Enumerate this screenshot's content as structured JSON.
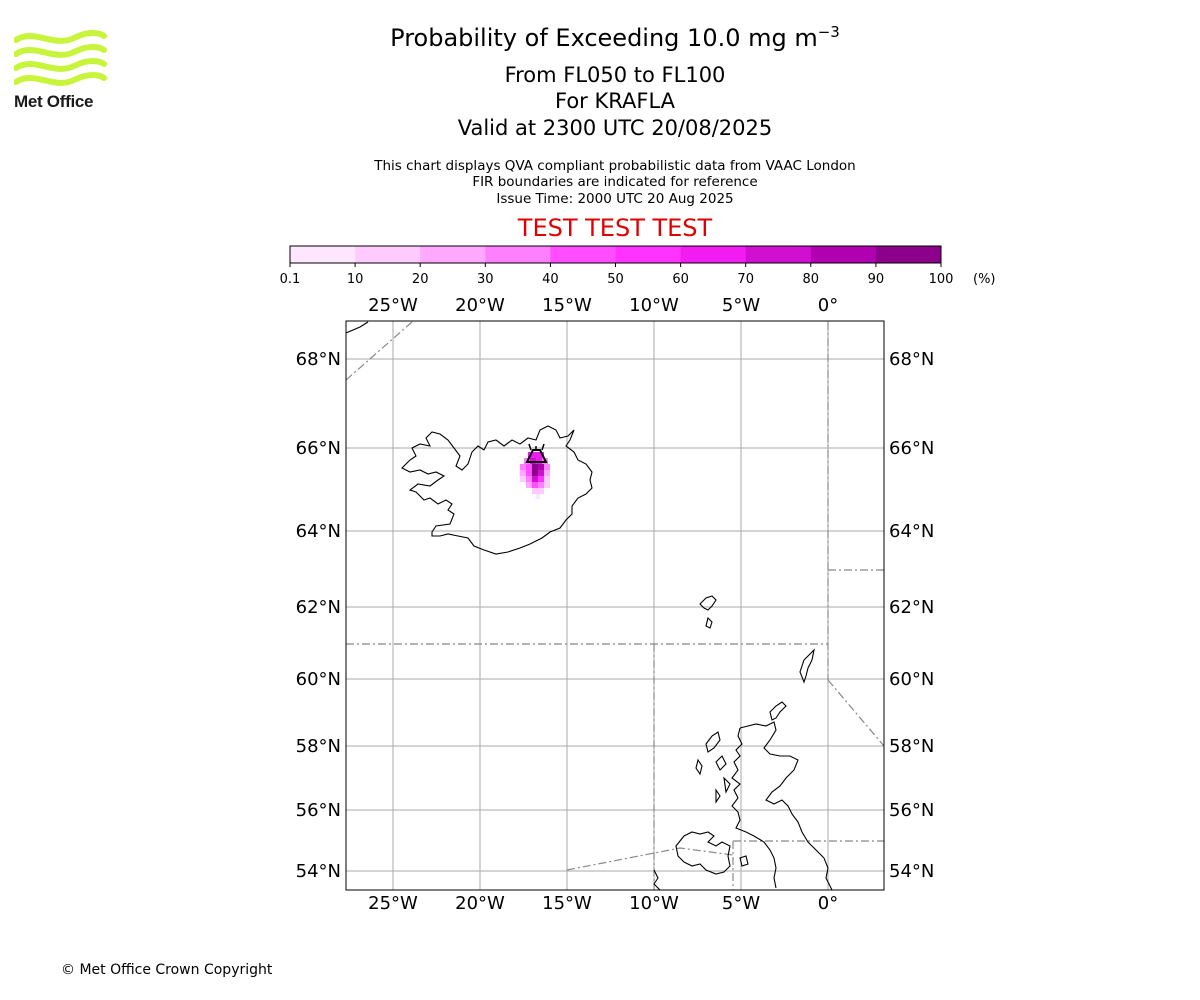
{
  "header": {
    "title": "Probability of Exceeding 10.0 mg m",
    "title_sup": "−3",
    "line1": "From FL050 to FL100",
    "line2": "For KRAFLA",
    "line3": "Valid at 2300 UTC 20/08/2025",
    "info1": "This chart displays QVA compliant probabilistic data from VAAC London",
    "info2": "FIR boundaries are indicated for reference",
    "info3": "Issue Time: 2000 UTC 20 Aug 2025",
    "test_banner": "TEST TEST TEST"
  },
  "logo": {
    "text": "Met Office",
    "color": "#c8f43c"
  },
  "footer": {
    "copyright": "© Met Office Crown Copyright"
  },
  "colorbar": {
    "ticks": [
      "0.1",
      "10",
      "20",
      "30",
      "40",
      "50",
      "60",
      "70",
      "80",
      "90",
      "100"
    ],
    "unit": "(%)",
    "colors": [
      "#ffe6ff",
      "#ffcbff",
      "#ffa8ff",
      "#ff80ff",
      "#ff4dff",
      "#ff33ff",
      "#f21bf2",
      "#d10fd1",
      "#b000b0",
      "#8c008c",
      "#660066"
    ]
  },
  "axes": {
    "lon_labels": [
      "25°W",
      "20°W",
      "15°W",
      "10°W",
      "5°W",
      "0°"
    ],
    "lat_labels": [
      "68°N",
      "66°N",
      "64°N",
      "62°N",
      "60°N",
      "58°N",
      "56°N",
      "54°N"
    ],
    "grid_color": "#aaaaaa",
    "fir_color": "#888888"
  },
  "volcano": {
    "name": "KRAFLA",
    "marker": "volcano-triangle-icon"
  },
  "plume_levels": [
    0.1,
    30,
    50,
    70,
    90
  ]
}
